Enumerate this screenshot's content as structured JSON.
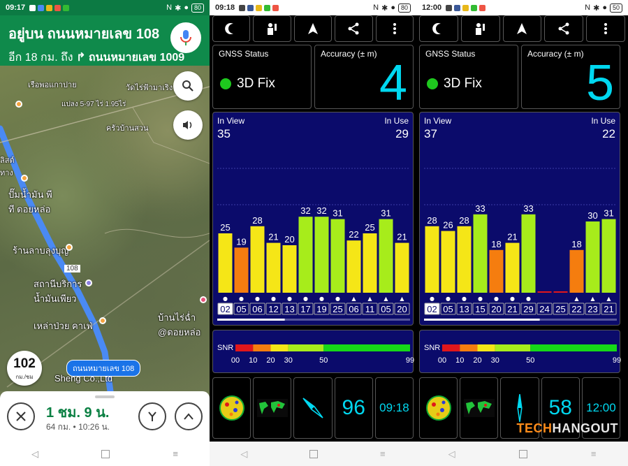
{
  "maps": {
    "status": {
      "time": "09:17",
      "battery": "80"
    },
    "header": {
      "on_street": "อยู่บน ถนนหมายเลข 108",
      "next_prefix": "อีก 18 กม. ถึง",
      "next_street": "ถนนหมายเลข 1009"
    },
    "labels": [
      {
        "text": "เรือพอแกาปาย"
      },
      {
        "text": "วัดไร่ฟ้ามาเริง"
      },
      {
        "text": "แปลง 5-97 ไร่ 1.95ไร่"
      },
      {
        "text": "ครัวบ้านสวน"
      },
      {
        "text": "ปั๊มน้ำมัน พี ที ดอยหล่อ"
      },
      {
        "text": "ร้านลาบลุงบุญ"
      },
      {
        "text": "108"
      },
      {
        "text": "สถานีบริการ น้ำมันเพียว"
      },
      {
        "text": "บ้านไร่ฉ่ำ @ดอยหล่อ"
      },
      {
        "text": "เหล่าป่วย คาเฟ่"
      },
      {
        "text": "Sheng Co.,Ltd"
      },
      {
        "text": "ลิสต์ ทาง"
      }
    ],
    "road_label": "ถนนหมายเลข 108",
    "speed": {
      "value": "102",
      "unit": "กม./ชม"
    },
    "eta": {
      "duration": "1 ชม. 9 น.",
      "distance": "64 กม.",
      "separator": "•",
      "arrival": "10:26 น."
    },
    "colors": {
      "header": "#0f8a4b",
      "route": "#4a8af4"
    }
  },
  "gps": [
    {
      "status_time": "09:18",
      "battery": "80",
      "gnss_title": "GNSS Status",
      "fix": "3D Fix",
      "accuracy_title": "Accuracy (± m)",
      "accuracy": "4",
      "in_view_label": "In View",
      "in_view": "35",
      "in_use_label": "In Use",
      "in_use": "29",
      "bars": [
        {
          "prn": "02",
          "snr": 25,
          "color": "#f5e617",
          "marker": "●",
          "selected": true
        },
        {
          "prn": "05",
          "snr": 19,
          "color": "#f57d0f",
          "marker": "●",
          "selected": false
        },
        {
          "prn": "06",
          "snr": 28,
          "color": "#f5e617",
          "marker": "●",
          "selected": false
        },
        {
          "prn": "12",
          "snr": 21,
          "color": "#f5e617",
          "marker": "●",
          "selected": false
        },
        {
          "prn": "13",
          "snr": 20,
          "color": "#f5e617",
          "marker": "●",
          "selected": false
        },
        {
          "prn": "17",
          "snr": 32,
          "color": "#a7ec1b",
          "marker": "●",
          "selected": false
        },
        {
          "prn": "19",
          "snr": 32,
          "color": "#a7ec1b",
          "marker": "●",
          "selected": false
        },
        {
          "prn": "25",
          "snr": 31,
          "color": "#a7ec1b",
          "marker": "●",
          "selected": false
        },
        {
          "prn": "06",
          "snr": 22,
          "color": "#f5e617",
          "marker": "▲",
          "selected": false
        },
        {
          "prn": "11",
          "snr": 25,
          "color": "#f5e617",
          "marker": "▲",
          "selected": false
        },
        {
          "prn": "05",
          "snr": 31,
          "color": "#a7ec1b",
          "marker": "▲",
          "selected": false
        },
        {
          "prn": "20",
          "snr": 21,
          "color": "#f5e617",
          "marker": "▲",
          "selected": false
        }
      ],
      "scroll_fraction": 0.35,
      "bottom": {
        "big": "96",
        "clock": "09:18"
      }
    },
    {
      "status_time": "12:00",
      "battery": "50",
      "gnss_title": "GNSS Status",
      "fix": "3D Fix",
      "accuracy_title": "Accuracy (± m)",
      "accuracy": "5",
      "in_view_label": "In View",
      "in_view": "37",
      "in_use_label": "In Use",
      "in_use": "22",
      "bars": [
        {
          "prn": "02",
          "snr": 28,
          "color": "#f5e617",
          "marker": "●",
          "selected": true
        },
        {
          "prn": "05",
          "snr": 26,
          "color": "#f5e617",
          "marker": "●",
          "selected": false
        },
        {
          "prn": "13",
          "snr": 28,
          "color": "#f5e617",
          "marker": "●",
          "selected": false
        },
        {
          "prn": "15",
          "snr": 33,
          "color": "#a7ec1b",
          "marker": "●",
          "selected": false
        },
        {
          "prn": "20",
          "snr": 18,
          "color": "#f57d0f",
          "marker": "●",
          "selected": false
        },
        {
          "prn": "21",
          "snr": 21,
          "color": "#f5e617",
          "marker": "●",
          "selected": false
        },
        {
          "prn": "29",
          "snr": 33,
          "color": "#a7ec1b",
          "marker": "●",
          "selected": false
        },
        {
          "prn": "24",
          "snr": 0,
          "color": "#e0161b",
          "marker": "",
          "selected": false
        },
        {
          "prn": "25",
          "snr": 0,
          "color": "#e0161b",
          "marker": "",
          "selected": false
        },
        {
          "prn": "22",
          "snr": 18,
          "color": "#f57d0f",
          "marker": "▲",
          "selected": false
        },
        {
          "prn": "23",
          "snr": 30,
          "color": "#a7ec1b",
          "marker": "▲",
          "selected": false
        },
        {
          "prn": "21",
          "snr": 31,
          "color": "#a7ec1b",
          "marker": "▲",
          "selected": false
        }
      ],
      "scroll_fraction": 0.6,
      "bottom": {
        "big": "58",
        "clock": "12:00"
      }
    }
  ],
  "snr_scale": {
    "label": "SNR",
    "ticks": [
      "00",
      "10",
      "20",
      "30",
      "50",
      "99"
    ],
    "segments": [
      {
        "from": 0,
        "to": 10,
        "color": "#e0161b"
      },
      {
        "from": 10,
        "to": 20,
        "color": "#f57d0f"
      },
      {
        "from": 20,
        "to": 30,
        "color": "#f5e617"
      },
      {
        "from": 30,
        "to": 50,
        "color": "#a7ec1b"
      },
      {
        "from": 50,
        "to": 99,
        "color": "#16d918"
      }
    ]
  },
  "chart_max_snr": 50,
  "watermark": {
    "a": "TECH",
    "b": "HANGOUT"
  }
}
